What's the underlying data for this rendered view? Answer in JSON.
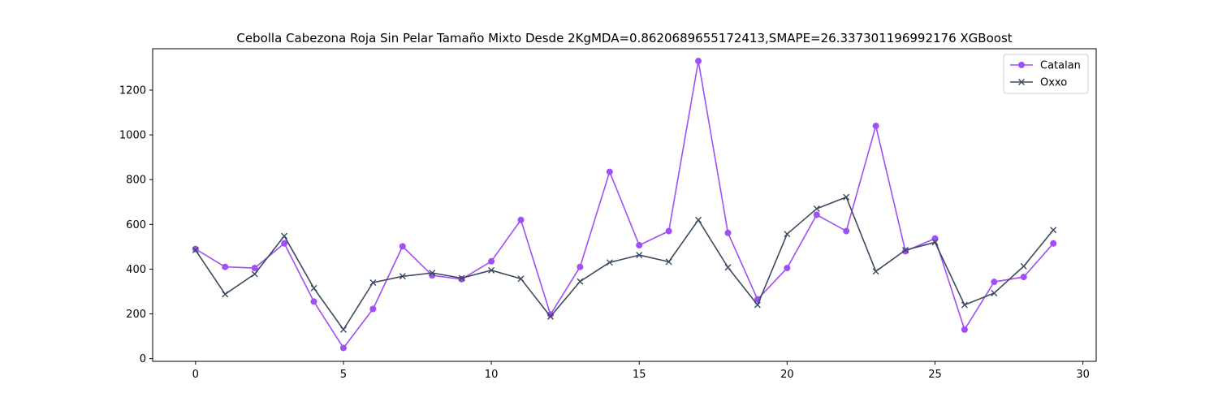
{
  "chart_data": {
    "type": "line",
    "title": "Cebolla Cabezona Roja Sin Pelar Tamaño Mixto Desde 2KgMDA=0.8620689655172413,SMAPE=26.337301196992176 XGBoost",
    "xlabel": "",
    "ylabel": "",
    "xlim": [
      -1.45,
      30.45
    ],
    "ylim": [
      -12,
      1385
    ],
    "xticks": [
      0,
      5,
      10,
      15,
      20,
      25,
      30
    ],
    "yticks": [
      0,
      200,
      400,
      600,
      800,
      1000,
      1200
    ],
    "grid": false,
    "legend_position": "top-right",
    "x": [
      0,
      1,
      2,
      3,
      4,
      5,
      6,
      7,
      8,
      9,
      10,
      11,
      12,
      13,
      14,
      15,
      16,
      17,
      18,
      19,
      20,
      21,
      22,
      23,
      24,
      25,
      26,
      27,
      28,
      29
    ],
    "series": [
      {
        "name": "Catalan",
        "color": "#a04ef5",
        "marker": "circle",
        "values": [
          490,
          410,
          405,
          515,
          255,
          48,
          222,
          502,
          372,
          355,
          435,
          620,
          197,
          410,
          835,
          507,
          570,
          1330,
          562,
          265,
          405,
          643,
          570,
          1040,
          480,
          537,
          130,
          343,
          365,
          515
        ]
      },
      {
        "name": "Oxxo",
        "color": "#3b4a60",
        "marker": "x",
        "values": [
          485,
          288,
          378,
          548,
          315,
          130,
          340,
          368,
          383,
          360,
          395,
          357,
          188,
          345,
          430,
          463,
          433,
          620,
          408,
          240,
          557,
          670,
          722,
          390,
          485,
          520,
          240,
          293,
          413,
          575
        ]
      }
    ]
  }
}
